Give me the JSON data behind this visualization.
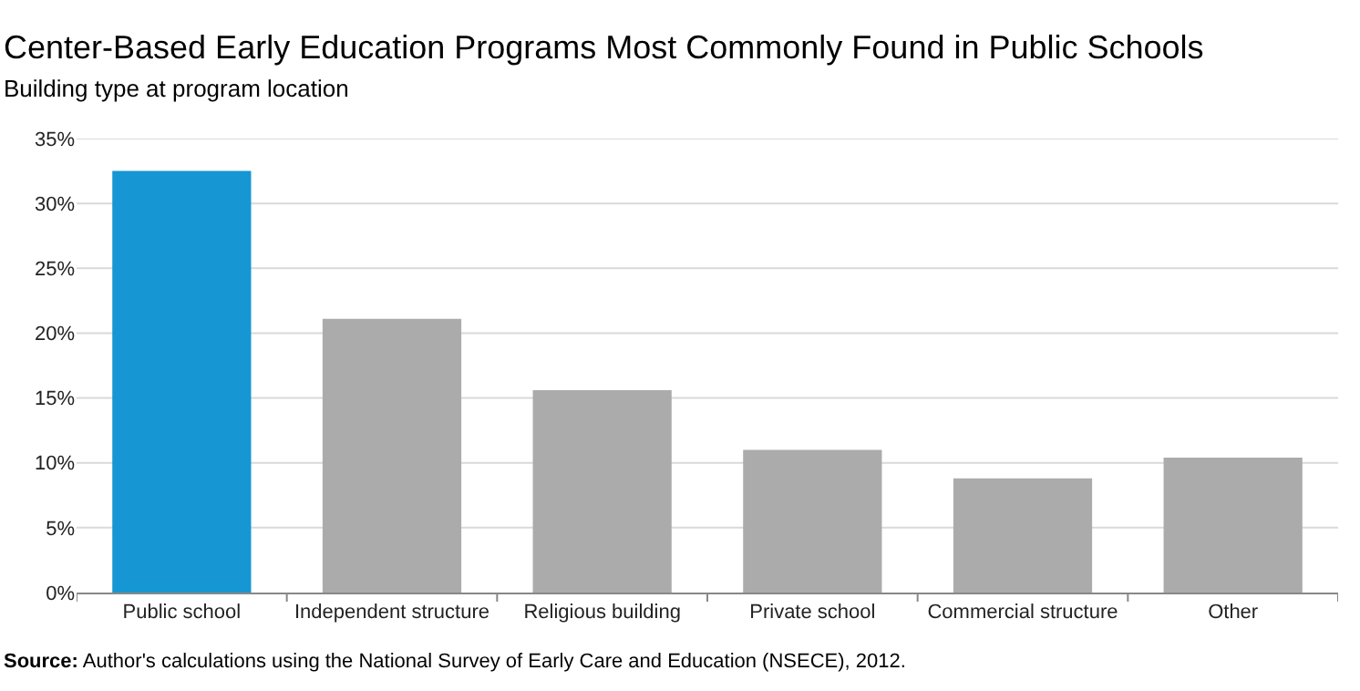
{
  "chart_data": {
    "type": "bar",
    "title": "Center-Based Early Education Programs Most Commonly Found in Public Schools",
    "subtitle": "Building type at program location",
    "categories": [
      "Public school",
      "Independent structure",
      "Religious building",
      "Private school",
      "Commercial structure",
      "Other"
    ],
    "values": [
      32.5,
      21.1,
      15.6,
      11.0,
      8.8,
      10.4
    ],
    "colors": [
      "#1696d2",
      "#ababab",
      "#ababab",
      "#ababab",
      "#ababab",
      "#ababab"
    ],
    "ylim": [
      0,
      35
    ],
    "yticks": [
      {
        "value": 0,
        "label": "0%"
      },
      {
        "value": 5,
        "label": "5%"
      },
      {
        "value": 10,
        "label": "10%"
      },
      {
        "value": 15,
        "label": "15%"
      },
      {
        "value": 20,
        "label": "20%"
      },
      {
        "value": 25,
        "label": "25%"
      },
      {
        "value": 30,
        "label": "30%"
      },
      {
        "value": 35,
        "label": "35%"
      }
    ],
    "grid": "y",
    "annotations": [
      "Source: Author's calculations using the National Survey of Early Care and Education (NSECE), 2012."
    ]
  }
}
